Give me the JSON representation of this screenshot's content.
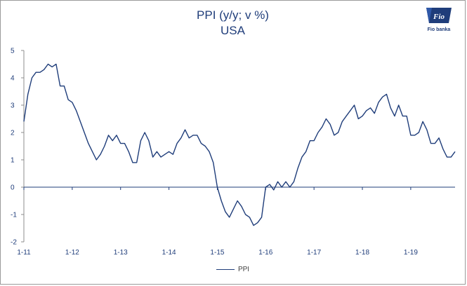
{
  "brand": {
    "logo_text": "Fio banka",
    "logo_mark": "Fio"
  },
  "chart_data": {
    "type": "line",
    "title": "PPI (y/y; v %)",
    "subtitle": "USA",
    "xlabel": "",
    "ylabel": "",
    "ylim": [
      -2,
      5
    ],
    "yticks": [
      "5",
      "4",
      "3",
      "2",
      "1",
      "0",
      "-1",
      "-2"
    ],
    "yticks_values": [
      5,
      4,
      3,
      2,
      1,
      0,
      -1,
      -2
    ],
    "xtick_labels": [
      "1-11",
      "1-12",
      "1-13",
      "1-14",
      "1-15",
      "1-16",
      "1-17",
      "1-18",
      "1-19"
    ],
    "xtick_months": [
      0,
      12,
      24,
      36,
      48,
      60,
      72,
      84,
      96
    ],
    "grid": false,
    "legend_position": "bottom",
    "series": [
      {
        "name": "PPI",
        "color": "#1f3d7a",
        "values": [
          2.4,
          3.4,
          4.0,
          4.2,
          4.2,
          4.3,
          4.5,
          4.4,
          4.5,
          3.7,
          3.7,
          3.2,
          3.1,
          2.8,
          2.4,
          2.0,
          1.6,
          1.3,
          1.0,
          1.2,
          1.5,
          1.9,
          1.7,
          1.9,
          1.6,
          1.6,
          1.3,
          0.9,
          0.9,
          1.7,
          2.0,
          1.7,
          1.1,
          1.3,
          1.1,
          1.2,
          1.3,
          1.2,
          1.6,
          1.8,
          2.1,
          1.8,
          1.9,
          1.9,
          1.6,
          1.5,
          1.3,
          0.9,
          0.0,
          -0.5,
          -0.9,
          -1.1,
          -0.8,
          -0.5,
          -0.7,
          -1.0,
          -1.1,
          -1.4,
          -1.3,
          -1.1,
          0.0,
          0.1,
          -0.1,
          0.2,
          0.0,
          0.2,
          0.0,
          0.2,
          0.7,
          1.1,
          1.3,
          1.7,
          1.7,
          2.0,
          2.2,
          2.5,
          2.3,
          1.9,
          2.0,
          2.4,
          2.6,
          2.8,
          3.0,
          2.5,
          2.6,
          2.8,
          2.9,
          2.7,
          3.1,
          3.3,
          3.4,
          2.9,
          2.6,
          3.0,
          2.6,
          2.6,
          1.9,
          1.9,
          2.0,
          2.4,
          2.1,
          1.6,
          1.6,
          1.8,
          1.4,
          1.1,
          1.1,
          1.3
        ]
      }
    ]
  }
}
